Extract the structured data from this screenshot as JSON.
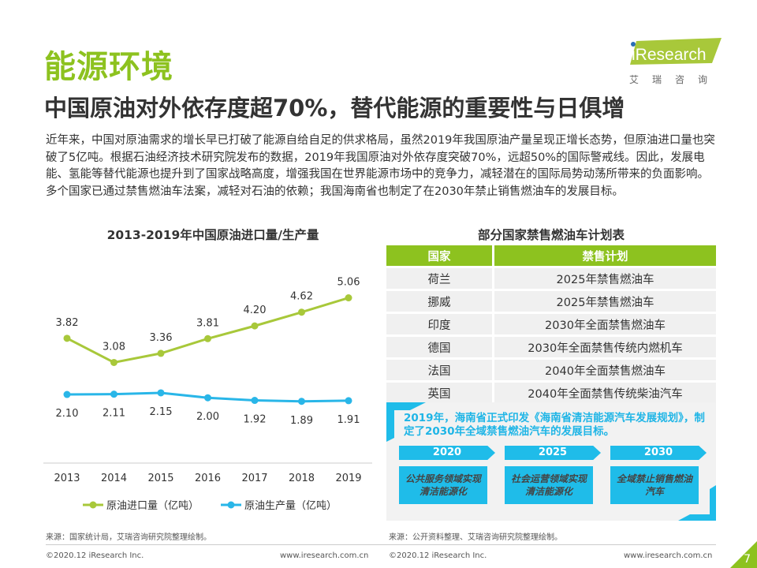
{
  "header": {
    "section": "能源环境",
    "title": "中国原油对外依存度超70%，替代能源的重要性与日俱增",
    "logo_text": "iResearch",
    "logo_cn": "艾瑞咨询"
  },
  "body": "近年来，中国对原油需求的增长早已打破了能源自给自足的供求格局，虽然2019年我国原油产量呈现正增长态势，但原油进口量也突破了5亿吨。根据石油经济技术研究院发布的数据，2019年我国原油对外依存度突破70%，远超50%的国际警戒线。因此，发展电能、氢能等替代能源也提升到了国家战略高度，增强我国在世界能源市场中的竞争力，减轻潜在的国际局势动荡所带来的负面影响。多个国家已通过禁售燃油车法案，减轻对石油的依赖；我国海南省也制定了在2030年禁止销售燃油车的发展目标。",
  "chart_data": {
    "type": "line",
    "title": "2013-2019年中国原油进口量/生产量",
    "categories": [
      "2013",
      "2014",
      "2015",
      "2016",
      "2017",
      "2018",
      "2019"
    ],
    "series": [
      {
        "name": "原油进口量（亿吨）",
        "color": "#a8c83a",
        "values": [
          3.82,
          3.08,
          3.36,
          3.81,
          4.2,
          4.62,
          5.06
        ]
      },
      {
        "name": "原油生产量（亿吨）",
        "color": "#29b6e8",
        "values": [
          2.1,
          2.11,
          2.15,
          2.0,
          1.92,
          1.89,
          1.91
        ]
      }
    ],
    "legend": "bottom",
    "grid": false
  },
  "table": {
    "title": "部分国家禁售燃油车计划表",
    "headers": [
      "国家",
      "禁售计划"
    ],
    "rows": [
      [
        "荷兰",
        "2025年禁售燃油车"
      ],
      [
        "挪威",
        "2025年禁售燃油车"
      ],
      [
        "印度",
        "2030年全面禁售燃油车"
      ],
      [
        "德国",
        "2030年全面禁售传统内燃机车"
      ],
      [
        "法国",
        "2040年全面禁售燃油车"
      ],
      [
        "英国",
        "2040年全面禁售传统柴油汽车"
      ]
    ]
  },
  "hainan": {
    "text": "2019年，海南省正式印发《海南省清洁能源汽车发展规划》，制定了2030年全域禁售燃油汽车的发展目标。",
    "stages": [
      {
        "year": "2020",
        "goal": "公共服务领域实现清洁能源化"
      },
      {
        "year": "2025",
        "goal": "社会运营领域实现清洁能源化"
      },
      {
        "year": "2030",
        "goal": "全域禁止销售燃油汽车"
      }
    ]
  },
  "footer": {
    "source_left": "来源：国家统计局，艾瑞咨询研究院整理绘制。",
    "source_right": "来源：公开资料整理、艾瑞咨询研究院整理绘制。",
    "copyright": "©2020.12 iResearch Inc.",
    "url": "www.iresearch.com.cn",
    "page": "7"
  }
}
